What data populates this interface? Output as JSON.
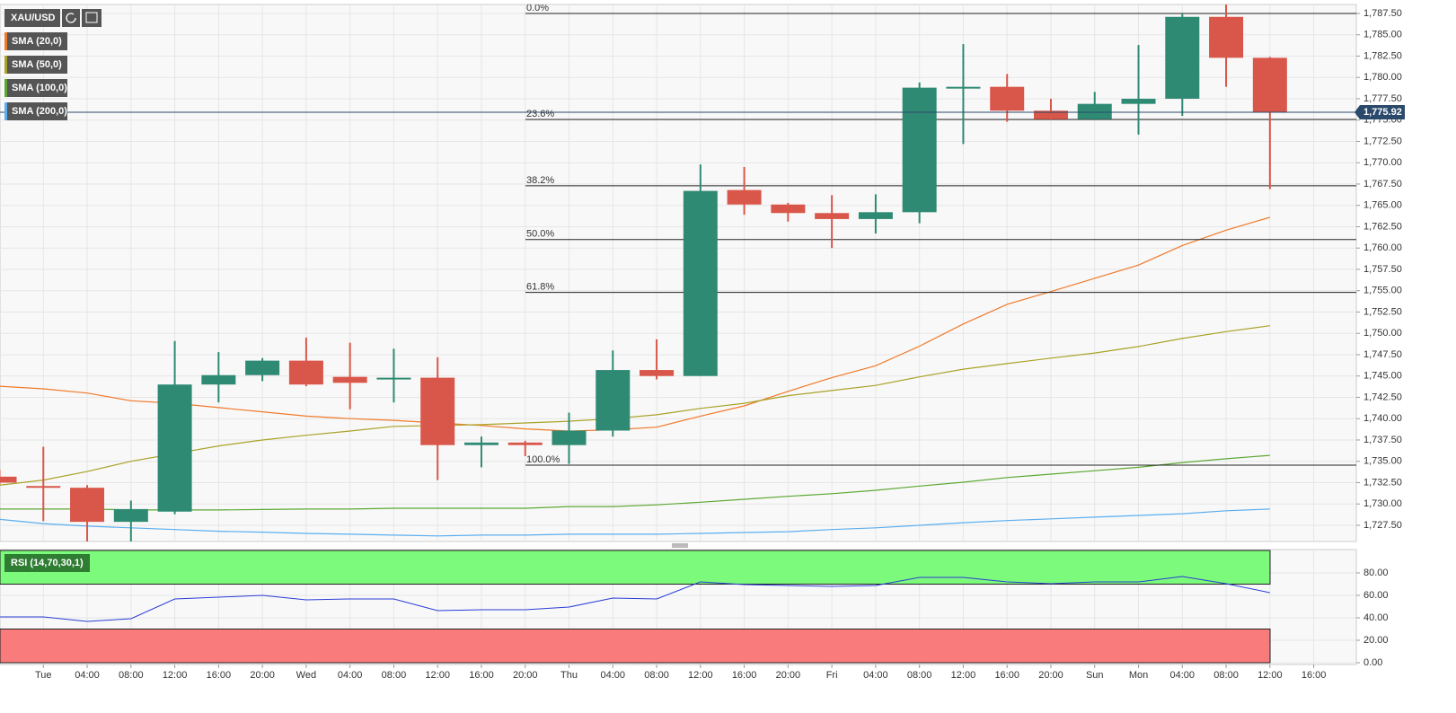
{
  "chart_data": [
    {
      "type": "candlestick",
      "title": "XAU/USD",
      "categories": [
        null,
        "Tue",
        "04:00",
        "08:00",
        "12:00",
        "16:00",
        "20:00",
        "Wed",
        "04:00",
        "08:00",
        "12:00",
        "16:00",
        "20:00",
        "Thu",
        "04:00",
        "08:00",
        "12:00",
        "16:00",
        "20:00",
        "Fri",
        "04:00",
        "08:00",
        "12:00",
        "16:00",
        "20:00",
        "Sun",
        "Mon",
        "04:00",
        "08:00",
        "12:00",
        "16:00"
      ],
      "up_color": "#2f8a74",
      "down_color": "#d9574a",
      "series": [
        {
          "name": "XAU/USD",
          "open": [
            1733.2,
            1732.1,
            1731.9,
            1727.9,
            1729.1,
            1744.0,
            1745.1,
            1746.8,
            1744.9,
            1744.7,
            1744.8,
            1736.9,
            1737.2,
            1736.9,
            1738.6,
            1745.7,
            1745.0,
            1766.8,
            1765.1,
            1764.1,
            1763.4,
            1764.2,
            1778.7,
            1778.9,
            1776.1,
            1775.1,
            1776.9,
            1777.5,
            1787.1,
            1782.3,
            null
          ],
          "high": [
            1734.0,
            1736.7,
            1732.2,
            1730.4,
            1749.1,
            1747.8,
            1747.1,
            1749.5,
            1748.9,
            1748.2,
            1747.2,
            1737.9,
            1737.4,
            1740.7,
            1748.0,
            1749.3,
            1769.8,
            1769.5,
            1765.3,
            1766.2,
            1766.3,
            1779.4,
            1783.9,
            1780.4,
            1777.5,
            1778.3,
            1783.8,
            1787.5,
            1788.55,
            1782.4,
            null
          ],
          "low": [
            1732.3,
            1728.0,
            1725.6,
            1725.6,
            1728.8,
            1741.9,
            1744.4,
            1743.8,
            1741.1,
            1741.9,
            1732.8,
            1734.3,
            1735.6,
            1734.7,
            1737.9,
            1744.6,
            1745.0,
            1763.9,
            1763.1,
            1760.0,
            1761.7,
            1762.9,
            1772.2,
            1774.8,
            1774.97,
            1774.97,
            1773.3,
            1775.5,
            1778.9,
            1766.9,
            null
          ],
          "close": [
            1732.5,
            1732.0,
            1727.9,
            1729.4,
            1744.0,
            1745.1,
            1746.8,
            1744.0,
            1744.2,
            1744.8,
            1736.9,
            1737.2,
            1736.9,
            1738.6,
            1745.7,
            1745.0,
            1766.7,
            1765.1,
            1764.1,
            1763.4,
            1764.2,
            1778.8,
            1778.9,
            1776.1,
            1775.1,
            1776.9,
            1777.5,
            1787.1,
            1782.3,
            1775.92,
            null
          ]
        }
      ],
      "lines": [
        {
          "name": "SMA (20,0)",
          "color": "#f07a2a",
          "values": [
            1743.8,
            1743.5,
            1743.0,
            1742.1,
            1741.8,
            1741.3,
            1740.8,
            1740.3,
            1740.0,
            1739.8,
            1739.5,
            1739.2,
            1738.8,
            1738.55,
            1738.7,
            1739.0,
            1740.3,
            1741.5,
            1743.2,
            1744.8,
            1746.2,
            1748.5,
            1751.1,
            1753.4,
            1754.9,
            1756.45,
            1758.0,
            1760.3,
            1762.1,
            1763.6,
            null
          ]
        },
        {
          "name": "SMA (50,0)",
          "color": "#a9a227",
          "values": [
            1732.2,
            1732.8,
            1733.8,
            1735.0,
            1735.9,
            1736.8,
            1737.5,
            1738.05,
            1738.55,
            1739.1,
            1739.2,
            1739.3,
            1739.5,
            1739.7,
            1740.0,
            1740.45,
            1741.2,
            1741.8,
            1742.7,
            1743.3,
            1743.9,
            1744.9,
            1745.8,
            1746.45,
            1747.1,
            1747.7,
            1748.45,
            1749.4,
            1750.2,
            1750.9,
            null
          ]
        },
        {
          "name": "SMA (100,0)",
          "color": "#5ca832",
          "values": [
            1729.4,
            1729.4,
            1729.4,
            1729.3,
            1729.3,
            1729.3,
            1729.35,
            1729.4,
            1729.4,
            1729.5,
            1729.5,
            1729.5,
            1729.5,
            1729.7,
            1729.7,
            1729.9,
            1730.2,
            1730.55,
            1730.9,
            1731.2,
            1731.6,
            1732.1,
            1732.55,
            1733.1,
            1733.5,
            1733.9,
            1734.3,
            1734.85,
            1735.3,
            1735.7,
            null
          ]
        },
        {
          "name": "SMA (200,0)",
          "color": "#5aaef0",
          "values": [
            1728.2,
            1727.7,
            1727.4,
            1727.2,
            1727.0,
            1726.8,
            1726.7,
            1726.55,
            1726.45,
            1726.35,
            1726.25,
            1726.35,
            1726.35,
            1726.45,
            1726.45,
            1726.45,
            1726.55,
            1726.65,
            1726.75,
            1727.0,
            1727.2,
            1727.5,
            1727.8,
            1728.05,
            1728.25,
            1728.45,
            1728.65,
            1728.85,
            1729.2,
            1729.4,
            null
          ]
        }
      ],
      "fib_levels": [
        {
          "label": "0.0%",
          "value": 1787.5
        },
        {
          "label": "23.6%",
          "value": 1775.08
        },
        {
          "label": "38.2%",
          "value": 1767.3
        },
        {
          "label": "50.0%",
          "value": 1761.0
        },
        {
          "label": "61.8%",
          "value": 1754.8
        },
        {
          "label": "100.0%",
          "value": 1734.55
        }
      ],
      "last_price": {
        "value": 1775.92,
        "label": "1,775.92"
      },
      "ylim": [
        1725.6,
        1788.55
      ],
      "yticks": [
        {
          "value": 1727.5,
          "label": "1,727.50"
        },
        {
          "value": 1730,
          "label": "1,730.00"
        },
        {
          "value": 1732.5,
          "label": "1,732.50"
        },
        {
          "value": 1735,
          "label": "1,735.00"
        },
        {
          "value": 1737.5,
          "label": "1,737.50"
        },
        {
          "value": 1740,
          "label": "1,740.00"
        },
        {
          "value": 1742.5,
          "label": "1,742.50"
        },
        {
          "value": 1745,
          "label": "1,745.00"
        },
        {
          "value": 1747.5,
          "label": "1,747.50"
        },
        {
          "value": 1750,
          "label": "1,750.00"
        },
        {
          "value": 1752.5,
          "label": "1,752.50"
        },
        {
          "value": 1755,
          "label": "1,755.00"
        },
        {
          "value": 1757.5,
          "label": "1,757.50"
        },
        {
          "value": 1760,
          "label": "1,760.00"
        },
        {
          "value": 1762.5,
          "label": "1,762.50"
        },
        {
          "value": 1765,
          "label": "1,765.00"
        },
        {
          "value": 1767.5,
          "label": "1,767.50"
        },
        {
          "value": 1770,
          "label": "1,770.00"
        },
        {
          "value": 1772.5,
          "label": "1,772.50"
        },
        {
          "value": 1775,
          "label": "1,775.00"
        },
        {
          "value": 1777.5,
          "label": "1,777.50"
        },
        {
          "value": 1780,
          "label": "1,780.00"
        },
        {
          "value": 1782.5,
          "label": "1,782.50"
        },
        {
          "value": 1785,
          "label": "1,785.00"
        },
        {
          "value": 1787.5,
          "label": "1,787.50"
        }
      ],
      "grid": true
    },
    {
      "type": "line",
      "series": [
        {
          "name": "RSI (14,70,30,1)",
          "color": "#2a3cd6",
          "values": [
            40.8,
            40.8,
            36.8,
            39.2,
            56.8,
            58.4,
            60.0,
            56.0,
            56.8,
            56.8,
            46.4,
            47.2,
            47.2,
            49.6,
            57.6,
            56.8,
            72.0,
            69.6,
            68.8,
            68.0,
            68.8,
            76.0,
            76.0,
            72.0,
            70.4,
            72.0,
            72.0,
            76.8,
            70.4,
            62.4,
            null
          ]
        }
      ],
      "bands": [
        {
          "from": 70,
          "to": 100,
          "color": "#7cfa7c"
        },
        {
          "from": 0,
          "to": 30,
          "color": "#fa7b7b"
        }
      ],
      "ylim": [
        -1.6,
        100.8
      ],
      "yticks": [
        {
          "value": 0,
          "label": "0.00"
        },
        {
          "value": 20,
          "label": "20.00"
        },
        {
          "value": 40,
          "label": "40.00"
        },
        {
          "value": 60,
          "label": "60.00"
        },
        {
          "value": 80,
          "label": "80.00"
        }
      ],
      "grid": true
    }
  ]
}
